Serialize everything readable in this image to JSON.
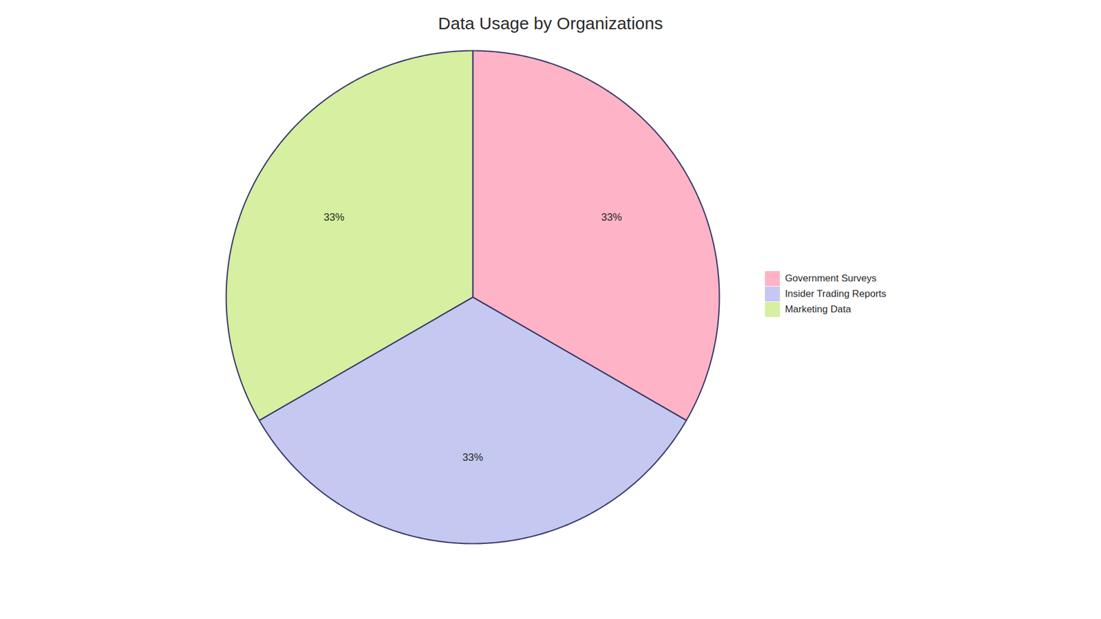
{
  "chart_data": {
    "type": "pie",
    "title": "Data Usage by Organizations",
    "categories": [
      "Government Surveys",
      "Insider Trading Reports",
      "Marketing Data"
    ],
    "values": [
      33,
      33,
      33
    ],
    "value_labels": [
      "33%",
      "33%",
      "33%"
    ],
    "colors": [
      "#FFB3C6",
      "#C5C8F0",
      "#D6EFA0"
    ],
    "data_labels": true,
    "legend": "right"
  }
}
